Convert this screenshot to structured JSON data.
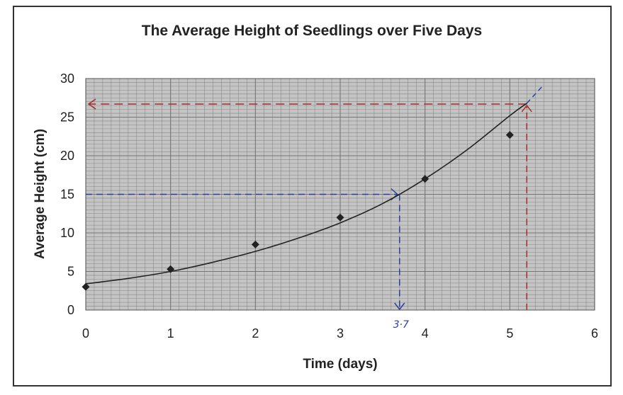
{
  "chart_data": {
    "type": "scatter",
    "title": "The Average Height of Seedlings over Five Days",
    "xlabel": "Time (days)",
    "ylabel": "Average Height (cm)",
    "xlim": [
      0,
      6
    ],
    "ylim": [
      0,
      30
    ],
    "x_ticks": [
      "0",
      "1",
      "2",
      "3",
      "4",
      "5",
      "6"
    ],
    "y_ticks": [
      "0",
      "5",
      "10",
      "15",
      "20",
      "25",
      "30"
    ],
    "grid": true,
    "series": [
      {
        "name": "Average height",
        "x": [
          0,
          1,
          2,
          3,
          4,
          5
        ],
        "y": [
          3,
          5.3,
          8.5,
          12,
          17,
          22.7
        ]
      }
    ],
    "trendline": {
      "name": "curve of best fit",
      "x": [
        0,
        0.5,
        1,
        1.5,
        2,
        2.5,
        3,
        3.5,
        4,
        4.5,
        5,
        5.2
      ],
      "y": [
        3.4,
        4.1,
        5.0,
        6.2,
        7.6,
        9.3,
        11.3,
        13.8,
        17.0,
        20.8,
        25.2,
        26.8
      ],
      "extension": {
        "x": [
          5.2,
          5.4
        ],
        "y": [
          26.8,
          29.2
        ]
      }
    },
    "annotations": [
      {
        "name": "blue-reading",
        "from_y": 15,
        "at_x": 3.7,
        "label": "3·7",
        "color": "#2a3f9a"
      },
      {
        "name": "red-reading",
        "from_x": 5.2,
        "at_y": 26.7,
        "color": "#a82a2a"
      }
    ]
  },
  "colors": {
    "plot_background": "#c4c4c4",
    "grid_line": "#6e6e6e",
    "marker": "#222222",
    "trendline": "#222222",
    "blue_annotation": "#2a3f9a",
    "red_annotation": "#a82a2a"
  }
}
